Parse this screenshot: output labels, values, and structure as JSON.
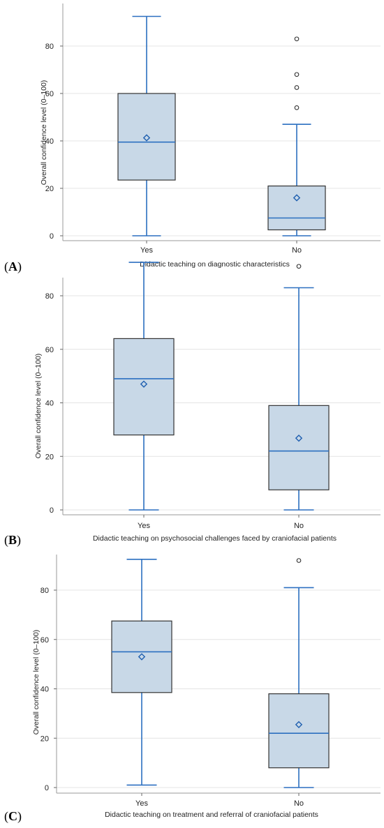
{
  "chart_data": [
    {
      "type": "boxplot",
      "panel_label": "A",
      "xlabel": "Didactic teaching on diagnostic characteristics",
      "ylabel": "Overall confidence level (0–100)",
      "yticks": [
        0,
        20,
        40,
        60,
        80
      ],
      "ylim": [
        -2,
        95
      ],
      "categories": [
        "Yes",
        "No"
      ],
      "boxes": [
        {
          "category": "Yes",
          "min": 0,
          "q1": 23.5,
          "median": 39.5,
          "q3": 60,
          "max": 92.5,
          "mean": 41.3,
          "outliers": []
        },
        {
          "category": "No",
          "min": 0,
          "q1": 2.5,
          "median": 7.5,
          "q3": 21,
          "max": 47,
          "mean": 16,
          "outliers": [
            54,
            62.5,
            68,
            83
          ]
        }
      ],
      "colors": {
        "box_fill": "#c8d8e7",
        "box_edge": "#333333",
        "whisker": "#2b6fc0",
        "median": "#2b6fc0",
        "mean_marker": "#1f5fb0",
        "outlier": "#333333",
        "grid": "#e4e4e4"
      }
    },
    {
      "type": "boxplot",
      "panel_label": "B",
      "xlabel": "Didactic teaching on psychosocial challenges faced by craniofacial patients",
      "ylabel": "Overall confidence level (0–100)",
      "yticks": [
        0,
        20,
        40,
        60,
        80
      ],
      "ylim": [
        -2,
        95
      ],
      "categories": [
        "Yes",
        "No"
      ],
      "boxes": [
        {
          "category": "Yes",
          "min": 0,
          "q1": 28,
          "median": 49,
          "q3": 64,
          "max": 92.5,
          "mean": 47,
          "outliers": []
        },
        {
          "category": "No",
          "min": 0,
          "q1": 7.5,
          "median": 22,
          "q3": 39,
          "max": 83,
          "mean": 26.8,
          "outliers": [
            91
          ]
        }
      ],
      "colors": {
        "box_fill": "#c8d8e7",
        "box_edge": "#333333",
        "whisker": "#2b6fc0",
        "median": "#2b6fc0",
        "mean_marker": "#1f5fb0",
        "outlier": "#333333",
        "grid": "#e4e4e4"
      }
    },
    {
      "type": "boxplot",
      "panel_label": "C",
      "xlabel": "Didactic teaching on treatment and referral of craniofacial patients",
      "ylabel": "Overall confidence level (0–100)",
      "yticks": [
        0,
        20,
        40,
        60,
        80
      ],
      "ylim": [
        -2,
        95
      ],
      "categories": [
        "Yes",
        "No"
      ],
      "boxes": [
        {
          "category": "Yes",
          "min": 1,
          "q1": 38.5,
          "median": 55,
          "q3": 67.5,
          "max": 92.5,
          "mean": 53,
          "outliers": []
        },
        {
          "category": "No",
          "min": 0,
          "q1": 8,
          "median": 22,
          "q3": 38,
          "max": 81,
          "mean": 25.5,
          "outliers": [
            92
          ]
        }
      ],
      "colors": {
        "box_fill": "#c8d8e7",
        "box_edge": "#333333",
        "whisker": "#2b6fc0",
        "median": "#2b6fc0",
        "mean_marker": "#1f5fb0",
        "outlier": "#333333",
        "grid": "#e4e4e4"
      }
    }
  ]
}
